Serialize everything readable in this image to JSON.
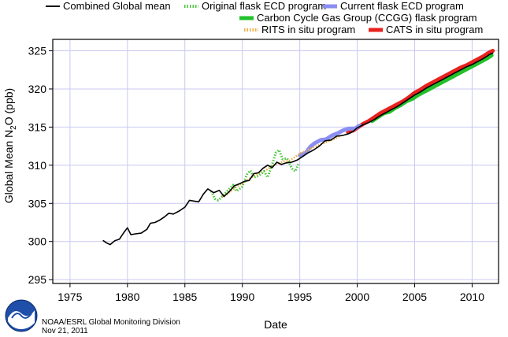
{
  "chart_data": {
    "type": "line",
    "title": "",
    "xlabel": "Date",
    "ylabel": "Global Mean N₂O (ppb)",
    "ylabel_parts": {
      "before": "Global Mean N",
      "sub": "2",
      "after": "O (ppb)"
    },
    "xlim": [
      1973.5,
      2012.3
    ],
    "ylim": [
      294.5,
      326.5
    ],
    "xticks": [
      1975,
      1980,
      1985,
      1990,
      1995,
      2000,
      2005,
      2010
    ],
    "yticks": [
      295,
      300,
      305,
      310,
      315,
      320,
      325
    ],
    "grid": true,
    "legend_placement": "top",
    "series": [
      {
        "name": "Combined Global mean",
        "color": "#000000",
        "style": "solid",
        "width": 1.6,
        "points": [
          [
            1977.9,
            300.1
          ],
          [
            1978.2,
            299.8
          ],
          [
            1978.5,
            299.6
          ],
          [
            1978.9,
            300.1
          ],
          [
            1979.3,
            300.3
          ],
          [
            1979.7,
            301.2
          ],
          [
            1980.0,
            301.8
          ],
          [
            1980.3,
            300.9
          ],
          [
            1980.7,
            301.0
          ],
          [
            1981.2,
            301.1
          ],
          [
            1981.7,
            301.6
          ],
          [
            1982.0,
            302.4
          ],
          [
            1982.4,
            302.5
          ],
          [
            1982.8,
            302.8
          ],
          [
            1983.2,
            303.2
          ],
          [
            1983.6,
            303.7
          ],
          [
            1984.0,
            303.6
          ],
          [
            1984.5,
            304.0
          ],
          [
            1985.0,
            304.5
          ],
          [
            1985.4,
            305.4
          ],
          [
            1985.8,
            305.3
          ],
          [
            1986.2,
            305.2
          ],
          [
            1986.6,
            306.2
          ],
          [
            1987.0,
            306.9
          ],
          [
            1987.5,
            306.4
          ],
          [
            1988.0,
            306.7
          ],
          [
            1988.4,
            305.9
          ],
          [
            1988.9,
            306.6
          ],
          [
            1989.3,
            307.3
          ],
          [
            1989.8,
            307.6
          ],
          [
            1990.2,
            307.9
          ],
          [
            1990.6,
            308.0
          ],
          [
            1991.0,
            308.9
          ],
          [
            1991.4,
            309.0
          ],
          [
            1991.8,
            309.6
          ],
          [
            1992.2,
            310.0
          ],
          [
            1992.6,
            309.7
          ],
          [
            1993.0,
            310.4
          ],
          [
            1993.4,
            310.1
          ],
          [
            1993.8,
            310.3
          ],
          [
            1994.3,
            310.4
          ],
          [
            1994.8,
            310.7
          ],
          [
            1995.2,
            311.1
          ],
          [
            1995.7,
            311.6
          ],
          [
            1996.2,
            312.0
          ],
          [
            1996.7,
            312.5
          ],
          [
            1997.2,
            313.2
          ],
          [
            1997.7,
            313.3
          ],
          [
            1998.2,
            313.8
          ],
          [
            1998.7,
            313.9
          ],
          [
            1999.2,
            314.1
          ],
          [
            1999.6,
            314.4
          ],
          [
            2000.0,
            314.9
          ],
          [
            2000.5,
            315.3
          ],
          [
            2001.0,
            315.6
          ],
          [
            2001.5,
            316.0
          ],
          [
            2002.0,
            316.5
          ],
          [
            2002.5,
            316.9
          ],
          [
            2003.0,
            317.3
          ],
          [
            2003.5,
            317.7
          ],
          [
            2004.0,
            318.2
          ],
          [
            2004.5,
            318.7
          ],
          [
            2005.0,
            319.2
          ],
          [
            2005.5,
            319.6
          ],
          [
            2006.0,
            320.1
          ],
          [
            2006.5,
            320.5
          ],
          [
            2007.0,
            320.9
          ],
          [
            2007.5,
            321.3
          ],
          [
            2008.0,
            321.7
          ],
          [
            2008.5,
            322.1
          ],
          [
            2009.0,
            322.5
          ],
          [
            2009.5,
            322.9
          ],
          [
            2010.0,
            323.2
          ],
          [
            2010.5,
            323.6
          ],
          [
            2011.0,
            324.0
          ],
          [
            2011.5,
            324.5
          ],
          [
            2011.8,
            324.7
          ]
        ]
      },
      {
        "name": "Original flask ECD program",
        "color": "#4cc63c",
        "style": "dotted",
        "width": 3,
        "points": [
          [
            1987.3,
            306.6
          ],
          [
            1987.6,
            305.6
          ],
          [
            1987.9,
            305.4
          ],
          [
            1988.3,
            306.0
          ],
          [
            1988.8,
            306.8
          ],
          [
            1989.2,
            307.4
          ],
          [
            1989.5,
            306.6
          ],
          [
            1990.0,
            307.2
          ],
          [
            1990.4,
            308.8
          ],
          [
            1990.7,
            309.3
          ],
          [
            1991.0,
            308.4
          ],
          [
            1991.4,
            308.6
          ],
          [
            1991.9,
            309.2
          ],
          [
            1992.2,
            308.4
          ],
          [
            1992.6,
            310.1
          ],
          [
            1992.9,
            311.6
          ],
          [
            1993.2,
            312.0
          ],
          [
            1993.5,
            310.8
          ],
          [
            1993.9,
            310.9
          ],
          [
            1994.3,
            309.6
          ],
          [
            1994.6,
            309.2
          ],
          [
            1994.9,
            310.2
          ]
        ]
      },
      {
        "name": "Current flask ECD program",
        "color": "#8b8ef2",
        "style": "solid",
        "width": 5,
        "points": [
          [
            1995.0,
            311.3
          ],
          [
            1995.5,
            311.6
          ],
          [
            1995.9,
            312.4
          ],
          [
            1996.3,
            312.9
          ],
          [
            1996.8,
            313.3
          ],
          [
            1997.3,
            313.4
          ],
          [
            1997.8,
            313.9
          ],
          [
            1998.3,
            314.2
          ],
          [
            1998.8,
            314.6
          ],
          [
            1999.3,
            314.8
          ],
          [
            1999.8,
            314.8
          ],
          [
            2000.2,
            315.2
          ]
        ]
      },
      {
        "name": "Carbon Cycle Gas Group (CCGG) flask program",
        "color": "#22c12a",
        "style": "solid",
        "width": 5,
        "points": [
          [
            2001.3,
            315.8
          ],
          [
            2001.8,
            316.3
          ],
          [
            2002.3,
            316.8
          ],
          [
            2002.8,
            317.0
          ],
          [
            2003.3,
            317.5
          ],
          [
            2003.8,
            317.9
          ],
          [
            2004.3,
            318.4
          ],
          [
            2004.8,
            318.7
          ],
          [
            2005.3,
            319.2
          ],
          [
            2005.8,
            319.6
          ],
          [
            2006.3,
            320.0
          ],
          [
            2006.8,
            320.4
          ],
          [
            2007.3,
            320.8
          ],
          [
            2007.8,
            321.2
          ],
          [
            2008.3,
            321.6
          ],
          [
            2008.8,
            322.0
          ],
          [
            2009.3,
            322.4
          ],
          [
            2009.8,
            322.8
          ],
          [
            2010.3,
            323.2
          ],
          [
            2010.8,
            323.6
          ],
          [
            2011.3,
            324.0
          ],
          [
            2011.7,
            324.4
          ]
        ]
      },
      {
        "name": "RITS in situ program",
        "color": "#f2a93b",
        "style": "dotted",
        "width": 2.5,
        "points": [
          [
            1988.2,
            305.9
          ],
          [
            1988.6,
            306.1
          ],
          [
            1988.9,
            306.5
          ],
          [
            1989.3,
            306.9
          ],
          [
            1989.7,
            307.4
          ],
          [
            1990.1,
            307.7
          ],
          [
            1990.6,
            308.2
          ],
          [
            1991.1,
            308.7
          ],
          [
            1991.6,
            309.0
          ],
          [
            1992.1,
            309.4
          ],
          [
            1992.6,
            309.9
          ],
          [
            1993.1,
            310.2
          ],
          [
            1993.6,
            310.5
          ],
          [
            1994.1,
            310.6
          ],
          [
            1994.6,
            311.1
          ],
          [
            1995.1,
            311.6
          ],
          [
            1995.6,
            311.9
          ],
          [
            1996.1,
            312.3
          ],
          [
            1996.6,
            312.6
          ],
          [
            1997.1,
            312.9
          ],
          [
            1997.6,
            313.2
          ],
          [
            1998.1,
            313.5
          ],
          [
            1998.6,
            313.9
          ]
        ]
      },
      {
        "name": "CATS in situ program",
        "color": "#e8221f",
        "style": "solid",
        "width": 5,
        "points": [
          [
            1999.2,
            314.3
          ],
          [
            1999.7,
            314.6
          ],
          [
            2000.0,
            314.9
          ],
          [
            2000.5,
            315.4
          ],
          [
            2001.0,
            315.8
          ],
          [
            2001.5,
            316.3
          ],
          [
            2002.0,
            316.8
          ],
          [
            2002.5,
            317.2
          ],
          [
            2003.0,
            317.6
          ],
          [
            2003.5,
            318.0
          ],
          [
            2004.0,
            318.4
          ],
          [
            2004.5,
            318.9
          ],
          [
            2005.0,
            319.5
          ],
          [
            2005.5,
            319.9
          ],
          [
            2006.0,
            320.4
          ],
          [
            2006.5,
            320.8
          ],
          [
            2007.0,
            321.2
          ],
          [
            2007.5,
            321.6
          ],
          [
            2008.0,
            322.0
          ],
          [
            2008.5,
            322.4
          ],
          [
            2009.0,
            322.8
          ],
          [
            2009.5,
            323.1
          ],
          [
            2010.0,
            323.5
          ],
          [
            2010.5,
            323.9
          ],
          [
            2011.0,
            324.3
          ],
          [
            2011.5,
            324.8
          ],
          [
            2011.8,
            325.0
          ]
        ]
      }
    ]
  },
  "footer": {
    "org": "NOAA/ESRL Global Monitoring Division",
    "date": "Nov 21, 2011",
    "logo_text": "NOAA"
  }
}
